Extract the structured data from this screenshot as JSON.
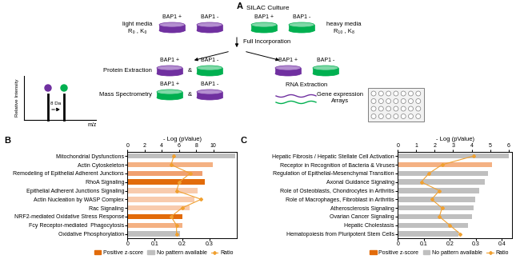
{
  "diagram": {
    "panel_label": "A",
    "title": "SILAC Culture",
    "culture_dishes": [
      "BAP1 +",
      "BAP1 -",
      "BAP1 +",
      "BAP1 -"
    ],
    "light_media": [
      "light media",
      "R₀ , K₀"
    ],
    "heavy_media": [
      "heavy media",
      "R₁₀ , K₈"
    ],
    "incorporation": "Full Incorporation",
    "protein_steps": [
      "Protein Extraction",
      "Mass Spectrometry"
    ],
    "protein_pairs": [
      [
        "BAP1 +",
        "&",
        "BAP1 -"
      ],
      [
        "BAP1 +",
        "&",
        "BAP1 -"
      ]
    ],
    "rna_dishes": [
      "BAP1 +",
      "BAP1 -"
    ],
    "rna_step": "RNA Extraction",
    "arrays": [
      "Gene expression",
      "Arrays"
    ],
    "spectrum": {
      "y_label": "Relative Intensity",
      "x_label": "m/z",
      "shift": "8 Da"
    }
  },
  "chart_data": [
    {
      "type": "bar",
      "orientation": "horizontal",
      "panel_label": "B",
      "x_label": "- Log (pValue)",
      "categories": [
        "Mitochondrial Dysfunctions",
        "Actin Cytoskeleton",
        "Remodeling of Epithelial Adherent Junctions",
        "RhoA Signaling",
        "Epithelial Adherent Junctions Signaling",
        "Actin Nucleation by WASP Complex",
        "Rac Signaling",
        "NRF2-mediated Oxidative Stress Response",
        "Fcy Receptor-mediated  Phagocytosis",
        "Oxidative Phosphorylation"
      ],
      "values": [
        12.5,
        9.9,
        8.7,
        9.0,
        8.2,
        7.8,
        7.2,
        6.4,
        6.4,
        6.1
      ],
      "colors": [
        "#bfbfbf",
        "#f4b183",
        "#f0a070",
        "#e26b0a",
        "#f8cbad",
        "#f8cbad",
        "#f8cbad",
        "#e26b0a",
        "#f4b183",
        "#bfbfbf"
      ],
      "xlim": [
        0,
        12.7
      ],
      "xticks": [
        0,
        2,
        4,
        6,
        8,
        10
      ],
      "series": [
        {
          "name": "Ratio",
          "type": "line",
          "axis": "x2",
          "color": "#f0a030",
          "marker": "diamond",
          "values": [
            0.17,
            0.16,
            0.23,
            0.19,
            0.18,
            0.27,
            0.2,
            0.16,
            0.18,
            0.18
          ]
        }
      ],
      "x2lim": [
        0,
        0.4
      ],
      "x2ticks": [
        0,
        0.1,
        0.2,
        0.3
      ],
      "legend": "below",
      "legend_entries": [
        {
          "name": "Positive z-score",
          "color": "#e26b0a"
        },
        {
          "name": "No pattern available",
          "color": "#bfbfbf"
        }
      ]
    },
    {
      "type": "bar",
      "orientation": "horizontal",
      "panel_label": "C",
      "x_label": "- Log (pValue)",
      "categories": [
        "Hepatic Fibrosis / Hepatic Stellate Cell Activation",
        "Receptor in Recognition of Bacteria & Viruses",
        "Regulation of Epithelial-Mesenchymal Transition",
        "Axonal Guidance Signaling",
        "Role of Osteoblasts, Chondrocytes in Arthritis",
        "Role of Macrophages, Fibroblast in Arthritis",
        "Atherosclerosis Signaling",
        "Ovarian Cancer Signaling",
        "Hepatic Cholestasis",
        "Hematopoiesis from Pluripotent Stem Cells"
      ],
      "values": [
        6.0,
        5.1,
        4.9,
        4.7,
        4.4,
        4.2,
        4.1,
        4.0,
        3.8,
        3.3
      ],
      "colors": [
        "#bfbfbf",
        "#f4b183",
        "#bfbfbf",
        "#bfbfbf",
        "#bfbfbf",
        "#bfbfbf",
        "#bfbfbf",
        "#bfbfbf",
        "#bfbfbf",
        "#bfbfbf"
      ],
      "xlim": [
        0,
        6.2
      ],
      "xticks": [
        0,
        1,
        2,
        3,
        4,
        5,
        6
      ],
      "series": [
        {
          "name": "Ratio",
          "type": "line",
          "axis": "x2",
          "color": "#f0a030",
          "marker": "diamond",
          "values": [
            0.29,
            0.17,
            0.12,
            0.09,
            0.16,
            0.13,
            0.17,
            0.16,
            0.2,
            0.24
          ]
        }
      ],
      "x2lim": [
        0,
        0.44
      ],
      "x2ticks": [
        0,
        0.1,
        0.2,
        0.3,
        0.4
      ],
      "legend": "below",
      "legend_entries": [
        {
          "name": "Positive z-score",
          "color": "#e26b0a"
        },
        {
          "name": "No pattern available",
          "color": "#bfbfbf"
        }
      ]
    }
  ]
}
